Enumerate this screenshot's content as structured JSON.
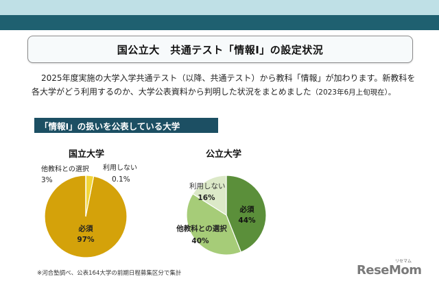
{
  "title": "国公立大　共通テスト「情報Ⅰ」の設定状況",
  "intro": {
    "line1": "2025年度実施の大学入学共通テスト（以降、共通テスト）から教科「情報」が加わります。新教科を",
    "line2": "各大学がどう利用するのか、大学公表資料から判明した状況をまとめました",
    "line2_date": "（2023年6月上旬現在）。"
  },
  "section_heading": "「情報Ⅰ」の扱いを公表している大学",
  "chart_data": [
    {
      "type": "pie",
      "title": "国立大学",
      "slices": [
        {
          "label": "必須",
          "value": 97,
          "display": "97%",
          "color": "#d4a20a"
        },
        {
          "label": "他教科との選択",
          "value": 3,
          "display": "3%",
          "color": "#f2d63a"
        },
        {
          "label": "利用しない",
          "value": 0.1,
          "display": "0.1%",
          "color": "#ffffff"
        }
      ]
    },
    {
      "type": "pie",
      "title": "公立大学",
      "slices": [
        {
          "label": "必須",
          "value": 44,
          "display": "44%",
          "color": "#5b8f3a"
        },
        {
          "label": "他教科との選択",
          "value": 40,
          "display": "40%",
          "color": "#a6cc78"
        },
        {
          "label": "利用しない",
          "value": 16,
          "display": "16%",
          "color": "#dce9c8"
        }
      ]
    }
  ],
  "footnote": "※河合塾調べ、公表164大学の前期日程募集区分で集計",
  "logo": {
    "text": "ReseMom",
    "sub": "リセマム"
  }
}
